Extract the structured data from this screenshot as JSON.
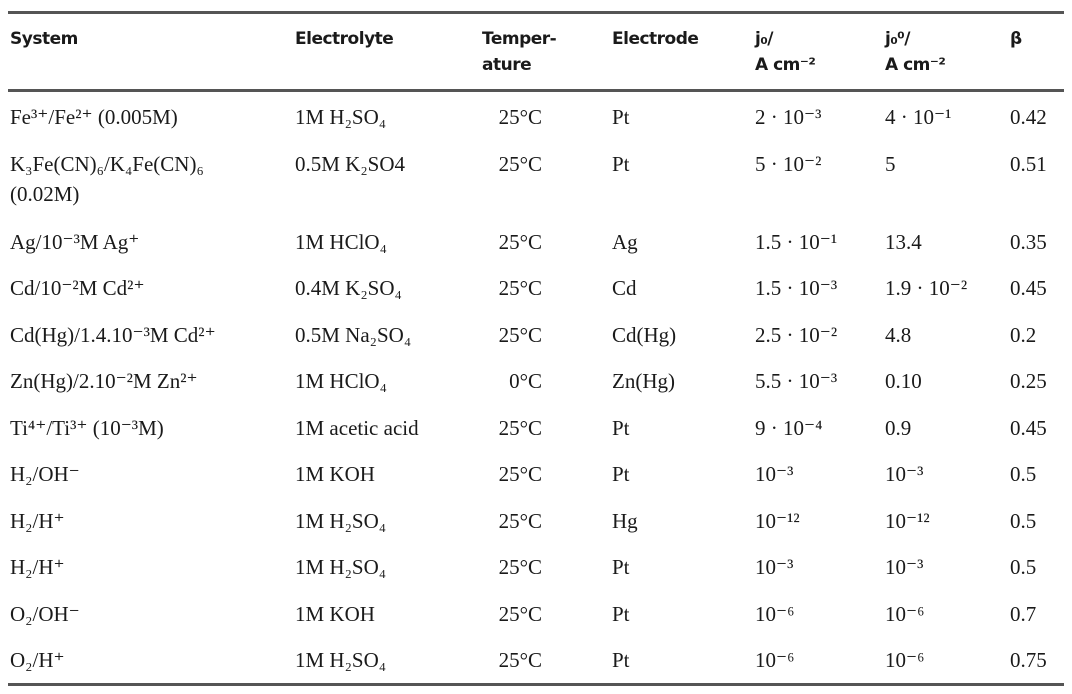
{
  "headers": {
    "system": "System",
    "electrolyte": "Electrolyte",
    "temperature_1": "Temper-",
    "temperature_2": "ature",
    "electrode": "Electrode",
    "j0_1": "j₀/",
    "j0_2": "A cm⁻²",
    "j00_1": "j₀⁰/",
    "j00_2": "A cm⁻²",
    "beta": "β"
  },
  "rows": [
    {
      "system": "Fe³⁺/Fe²⁺ (0.005M)",
      "electrolyte": "1M H₂SO₄",
      "temperature": "25°C",
      "electrode": "Pt",
      "j0": "2 · 10⁻³",
      "j00": "4 · 10⁻¹",
      "beta": "0.42"
    },
    {
      "system": "K₃Fe(CN)₆/K₄Fe(CN)₆",
      "system_2": "(0.02M)",
      "electrolyte": "0.5M K₂SO4",
      "temperature": "25°C",
      "electrode": "Pt",
      "j0": "5 · 10⁻²",
      "j00": "5",
      "beta": "0.51"
    },
    {
      "system": "Ag/10⁻³M Ag⁺",
      "electrolyte": "1M HClO₄",
      "temperature": "25°C",
      "electrode": "Ag",
      "j0": "1.5 · 10⁻¹",
      "j00": "13.4",
      "beta": "0.35"
    },
    {
      "system": "Cd/10⁻²M Cd²⁺",
      "electrolyte": "0.4M K₂SO₄",
      "temperature": "25°C",
      "electrode": "Cd",
      "j0": "1.5 · 10⁻³",
      "j00": "1.9 · 10⁻²",
      "beta": "0.45"
    },
    {
      "system": "Cd(Hg)/1.4.10⁻³M Cd²⁺",
      "electrolyte": "0.5M Na₂SO₄",
      "temperature": "25°C",
      "electrode": "Cd(Hg)",
      "j0": "2.5 · 10⁻²",
      "j00": "4.8",
      "beta": "0.2"
    },
    {
      "system": "Zn(Hg)/2.10⁻²M Zn²⁺",
      "electrolyte": "1M HClO₄",
      "temperature": "0°C",
      "electrode": "Zn(Hg)",
      "j0": "5.5 · 10⁻³",
      "j00": "0.10",
      "beta": "0.25"
    },
    {
      "system": "Ti⁴⁺/Ti³⁺ (10⁻³M)",
      "electrolyte": "1M acetic acid",
      "temperature": "25°C",
      "electrode": "Pt",
      "j0": "9 · 10⁻⁴",
      "j00": "0.9",
      "beta": "0.45"
    },
    {
      "system": "H₂/OH⁻",
      "electrolyte": "1M KOH",
      "temperature": "25°C",
      "electrode": "Pt",
      "j0": "10⁻³",
      "j00": "10⁻³",
      "beta": "0.5"
    },
    {
      "system": "H₂/H⁺",
      "electrolyte": "1M H₂SO₄",
      "temperature": "25°C",
      "electrode": "Hg",
      "j0": "10⁻¹²",
      "j00": "10⁻¹²",
      "beta": "0.5"
    },
    {
      "system": "H₂/H⁺",
      "electrolyte": "1M H₂SO₄",
      "temperature": "25°C",
      "electrode": "Pt",
      "j0": "10⁻³",
      "j00": "10⁻³",
      "beta": "0.5"
    },
    {
      "system": "O₂/OH⁻",
      "electrolyte": "1M KOH",
      "temperature": "25°C",
      "electrode": "Pt",
      "j0": "10⁻⁶",
      "j00": "10⁻⁶",
      "beta": "0.7"
    },
    {
      "system": "O₂/H⁺",
      "electrolyte": "1M H₂SO₄",
      "temperature": "25°C",
      "electrode": "Pt",
      "j0": "10⁻⁶",
      "j00": "10⁻⁶",
      "beta": "0.75"
    }
  ]
}
